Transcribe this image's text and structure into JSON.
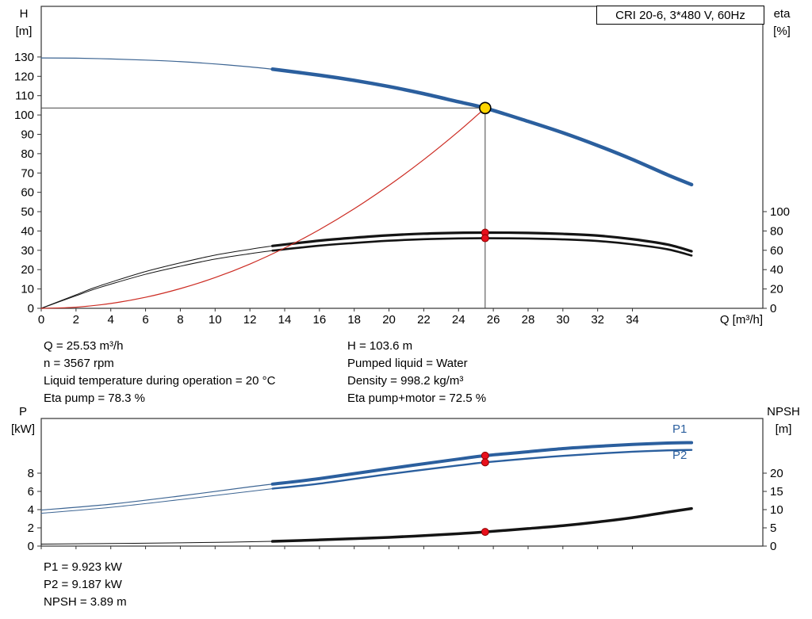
{
  "title_box": "CRI 20-6, 3*480 V, 60Hz",
  "colors": {
    "curve_blue": "#2b5f9e",
    "thin_blue": "#3d6593",
    "curve_black": "#141414",
    "curve_red": "#cc2b22",
    "duty_yellow": "#ffd500",
    "dot_red": "#e8101c",
    "axis": "#333333",
    "crosshair": "#444444"
  },
  "annotations": {
    "top_left": [
      "Q = 25.53 m³/h",
      "n = 3567 rpm",
      "Liquid temperature during operation = 20 °C",
      "Eta pump = 78.3 %"
    ],
    "top_right": [
      "H = 103.6 m",
      "Pumped liquid = Water",
      "Density = 998.2 kg/m³",
      "Eta pump+motor = 72.5 %"
    ],
    "bottom": [
      "P1 = 9.923 kW",
      "P2 = 9.187 kW",
      "NPSH = 3.89 m"
    ]
  },
  "chart_data": [
    {
      "type": "line",
      "name": "qh-eta-chart",
      "title": "CRI 20-6, 3*480 V, 60Hz",
      "x_axis": {
        "label": "Q [m³/h]",
        "min": 0,
        "max": 41.5,
        "ticks": [
          0,
          2,
          4,
          6,
          8,
          10,
          12,
          14,
          16,
          18,
          20,
          22,
          24,
          26,
          28,
          30,
          32,
          34
        ],
        "show_tick_labels": true
      },
      "y_left": {
        "label": [
          "H",
          "[m]"
        ],
        "min": 0,
        "max": 156.2,
        "ticks": [
          0,
          10,
          20,
          30,
          40,
          50,
          60,
          70,
          80,
          90,
          100,
          110,
          120,
          130
        ]
      },
      "y_right": {
        "label": [
          "eta",
          "[%]"
        ],
        "min": 0,
        "max": 312.3,
        "ticks": [
          0,
          20,
          40,
          60,
          80,
          100
        ]
      },
      "series": [
        {
          "name": "head-curve-extension",
          "axis": "left",
          "color": "thin_blue",
          "width": 1.2,
          "points": [
            [
              0,
              129.5
            ],
            [
              2,
              129.4
            ],
            [
              4,
              129.0
            ],
            [
              6,
              128.4
            ],
            [
              8,
              127.6
            ],
            [
              10,
              126.4
            ],
            [
              12,
              124.9
            ],
            [
              13.3,
              123.7
            ]
          ]
        },
        {
          "name": "eta-pump-extension",
          "axis": "right",
          "color": "curve_black",
          "width": 1,
          "points": [
            [
              0,
              0
            ],
            [
              1,
              7
            ],
            [
              2,
              14
            ],
            [
              3,
              21
            ],
            [
              4,
              27
            ],
            [
              6,
              38
            ],
            [
              8,
              47
            ],
            [
              10,
              55
            ],
            [
              12,
              61
            ],
            [
              13.3,
              64.5
            ]
          ]
        },
        {
          "name": "eta-pump-motor-extension",
          "axis": "right",
          "color": "curve_black",
          "width": 1,
          "points": [
            [
              0,
              0
            ],
            [
              1,
              6.5
            ],
            [
              2,
              13
            ],
            [
              3,
              19.4
            ],
            [
              4,
              25
            ],
            [
              6,
              35.2
            ],
            [
              8,
              43.5
            ],
            [
              10,
              50.9
            ],
            [
              12,
              56.5
            ],
            [
              13.3,
              59.7
            ]
          ]
        },
        {
          "name": "eta-pump-curve",
          "axis": "right",
          "color": "curve_black",
          "width": 3.2,
          "points": [
            [
              13.3,
              64.5
            ],
            [
              16,
              70
            ],
            [
              18,
              73
            ],
            [
              20,
              75.5
            ],
            [
              22,
              77.2
            ],
            [
              24,
              78.1
            ],
            [
              25.53,
              78.3
            ],
            [
              28,
              78.0
            ],
            [
              30,
              77.0
            ],
            [
              32,
              75.2
            ],
            [
              34,
              71.5
            ],
            [
              36,
              66.0
            ],
            [
              37.4,
              59.0
            ]
          ]
        },
        {
          "name": "eta-pump-motor-curve",
          "axis": "right",
          "color": "curve_black",
          "width": 2.6,
          "points": [
            [
              13.3,
              59.7
            ],
            [
              16,
              64.8
            ],
            [
              18,
              67.6
            ],
            [
              20,
              69.9
            ],
            [
              22,
              71.5
            ],
            [
              24,
              72.3
            ],
            [
              25.53,
              72.5
            ],
            [
              28,
              72.2
            ],
            [
              30,
              71.3
            ],
            [
              32,
              69.6
            ],
            [
              34,
              66.2
            ],
            [
              36,
              61.1
            ],
            [
              37.4,
              54.6
            ]
          ]
        },
        {
          "name": "system-curve",
          "axis": "left",
          "color": "curve_red",
          "width": 1.2,
          "points": [
            [
              0,
              0
            ],
            [
              2,
              0.6
            ],
            [
              4,
              2.5
            ],
            [
              6,
              5.7
            ],
            [
              8,
              10.2
            ],
            [
              10,
              15.9
            ],
            [
              12,
              22.9
            ],
            [
              14,
              31.2
            ],
            [
              16,
              40.7
            ],
            [
              18,
              51.5
            ],
            [
              20,
              63.6
            ],
            [
              22,
              76.9
            ],
            [
              24,
              91.5
            ],
            [
              25.53,
              103.6
            ]
          ]
        },
        {
          "name": "head-curve",
          "axis": "left",
          "color": "curve_blue",
          "width": 4.5,
          "points": [
            [
              13.3,
              123.7
            ],
            [
              16,
              120.6
            ],
            [
              18,
              117.9
            ],
            [
              20,
              114.7
            ],
            [
              22,
              111.0
            ],
            [
              24,
              106.8
            ],
            [
              25.53,
              103.6
            ],
            [
              28,
              96.7
            ],
            [
              30,
              90.8
            ],
            [
              32,
              84.2
            ],
            [
              34,
              77.0
            ],
            [
              36,
              69.1
            ],
            [
              37.4,
              64.0
            ]
          ]
        }
      ],
      "crosshair": {
        "q": 25.53,
        "h": 103.6
      },
      "markers": [
        {
          "name": "eta-pump-point",
          "axis": "right",
          "q": 25.53,
          "v": 78.3,
          "style": "dot"
        },
        {
          "name": "eta-pump-motor-point",
          "axis": "right",
          "q": 25.53,
          "v": 72.5,
          "style": "dot"
        },
        {
          "name": "duty-point",
          "axis": "left",
          "q": 25.53,
          "v": 103.6,
          "style": "duty"
        }
      ],
      "labels": []
    },
    {
      "type": "line",
      "name": "power-npsh-chart",
      "x_axis": {
        "label": "",
        "min": 0,
        "max": 41.5,
        "ticks": [
          0,
          2,
          4,
          6,
          8,
          10,
          12,
          14,
          16,
          18,
          20,
          22,
          24,
          26,
          28,
          30,
          32,
          34
        ],
        "show_tick_labels": false
      },
      "y_left": {
        "label": [
          "P",
          "[kW]"
        ],
        "min": 0,
        "max": 14.0,
        "ticks": [
          0,
          2,
          4,
          6,
          8
        ]
      },
      "y_right": {
        "label": [
          "NPSH",
          "[m]"
        ],
        "min": 0,
        "max": 35.0,
        "ticks": [
          0,
          5,
          10,
          15,
          20
        ]
      },
      "series": [
        {
          "name": "p1-curve-extension",
          "axis": "left",
          "color": "thin_blue",
          "width": 1.2,
          "points": [
            [
              0,
              3.95
            ],
            [
              4,
              4.6
            ],
            [
              8,
              5.5
            ],
            [
              12,
              6.5
            ],
            [
              13.3,
              6.8
            ]
          ]
        },
        {
          "name": "p2-curve-extension",
          "axis": "left",
          "color": "thin_blue",
          "width": 1,
          "points": [
            [
              0,
              3.6
            ],
            [
              4,
              4.25
            ],
            [
              8,
              5.1
            ],
            [
              12,
              6.0
            ],
            [
              13.3,
              6.3
            ]
          ]
        },
        {
          "name": "npsh-curve-extension",
          "axis": "right",
          "color": "curve_black",
          "width": 1,
          "points": [
            [
              0,
              0.55
            ],
            [
              4,
              0.7
            ],
            [
              8,
              0.9
            ],
            [
              11,
              1.1
            ],
            [
              13.3,
              1.3
            ]
          ]
        },
        {
          "name": "p1-curve",
          "axis": "left",
          "color": "curve_blue",
          "width": 4,
          "points": [
            [
              13.3,
              6.8
            ],
            [
              16,
              7.4
            ],
            [
              20,
              8.5
            ],
            [
              24,
              9.55
            ],
            [
              25.53,
              9.923
            ],
            [
              28,
              10.35
            ],
            [
              30,
              10.7
            ],
            [
              32,
              10.95
            ],
            [
              34,
              11.15
            ],
            [
              36,
              11.3
            ],
            [
              37.4,
              11.35
            ]
          ]
        },
        {
          "name": "p2-curve",
          "axis": "left",
          "color": "curve_blue",
          "width": 2.4,
          "points": [
            [
              13.3,
              6.3
            ],
            [
              16,
              6.85
            ],
            [
              20,
              7.9
            ],
            [
              24,
              8.85
            ],
            [
              25.53,
              9.187
            ],
            [
              28,
              9.6
            ],
            [
              30,
              9.9
            ],
            [
              32,
              10.15
            ],
            [
              34,
              10.35
            ],
            [
              36,
              10.5
            ],
            [
              37.4,
              10.55
            ]
          ]
        },
        {
          "name": "npsh-curve",
          "axis": "right",
          "color": "curve_black",
          "width": 3.5,
          "points": [
            [
              13.3,
              1.3
            ],
            [
              16,
              1.7
            ],
            [
              20,
              2.4
            ],
            [
              24,
              3.4
            ],
            [
              25.53,
              3.89
            ],
            [
              28,
              4.8
            ],
            [
              30,
              5.6
            ],
            [
              32,
              6.6
            ],
            [
              34,
              7.8
            ],
            [
              36,
              9.3
            ],
            [
              37.4,
              10.3
            ]
          ]
        }
      ],
      "markers": [
        {
          "name": "p1-point",
          "axis": "left",
          "q": 25.53,
          "v": 9.923,
          "style": "dot"
        },
        {
          "name": "p2-point",
          "axis": "left",
          "q": 25.53,
          "v": 9.187,
          "style": "dot"
        },
        {
          "name": "npsh-point",
          "axis": "right",
          "q": 25.53,
          "v": 3.89,
          "style": "dot"
        }
      ],
      "labels": [
        {
          "text": "P1",
          "axis": "left",
          "q": 36.3,
          "v": 12.45,
          "color": "curve_blue"
        },
        {
          "text": "P2",
          "axis": "left",
          "q": 36.3,
          "v": 9.55,
          "color": "curve_blue"
        }
      ]
    }
  ]
}
